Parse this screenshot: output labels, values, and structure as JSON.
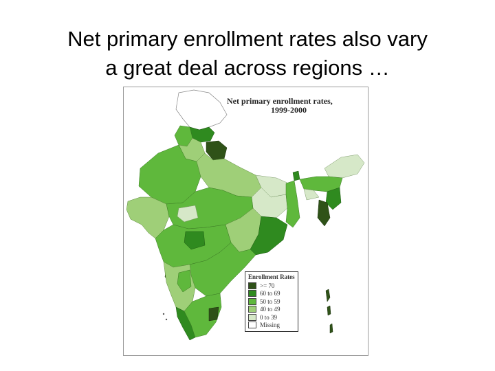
{
  "slide": {
    "title_line1": "Net primary enrollment rates also vary",
    "title_line2": "a great deal across regions …"
  },
  "map": {
    "title_line1": "Net primary enrollment rates,",
    "title_line2": "1999-2000",
    "legend": {
      "title": "Enrollment Rates",
      "items": [
        {
          "label": ">= 70",
          "color": "#2f5218"
        },
        {
          "label": "60 to 69",
          "color": "#2f8a1f"
        },
        {
          "label": "50 to 59",
          "color": "#5fb83c"
        },
        {
          "label": "40 to 49",
          "color": "#9fcf78"
        },
        {
          "label": "0 to 39",
          "color": "#d6e8c8"
        },
        {
          "label": "Missing",
          "color": "#ffffff"
        }
      ]
    }
  }
}
